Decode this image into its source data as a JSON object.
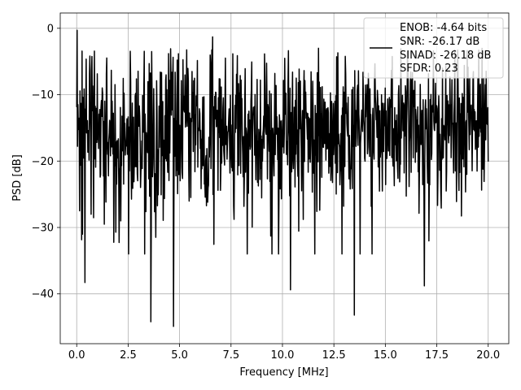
{
  "chart_data": {
    "type": "line",
    "xlabel": "Frequency [MHz]",
    "ylabel": "PSD [dB]",
    "xlim": [
      -0.8,
      21.0
    ],
    "ylim": [
      -47.5,
      2.3
    ],
    "xticks": [
      0.0,
      2.5,
      5.0,
      7.5,
      10.0,
      12.5,
      15.0,
      17.5,
      20.0
    ],
    "xtick_labels": [
      "0.0",
      "2.5",
      "5.0",
      "7.5",
      "10.0",
      "12.5",
      "15.0",
      "17.5",
      "20.0"
    ],
    "yticks": [
      0,
      -10,
      -20,
      -30,
      -40
    ],
    "ytick_labels": [
      "0",
      "−10",
      "−20",
      "−30",
      "−40"
    ],
    "grid": true,
    "legend_position": "top-right",
    "legend_lines": [
      "ENOB: -4.64 bits",
      "SNR: -26.17 dB",
      "SINAD: -26.18 dB",
      "SFDR: 0.23"
    ],
    "line_color": "#000000",
    "series": [
      {
        "label": "ENOB: -4.64 bits\nSNR: -26.17 dB\nSINAD: -26.18 dB\nSFDR: 0.23",
        "x_range": [
          0.0,
          20.0
        ],
        "point_count": 1000,
        "mean_level_db": -15,
        "noise_band_db": [
          -28,
          -3
        ],
        "notable_points": [
          {
            "x": 0.03,
            "y": -0.3
          },
          {
            "x": 0.1,
            "y": -15
          },
          {
            "x": 0.15,
            "y": -27.5
          },
          {
            "x": 0.4,
            "y": -38.3
          },
          {
            "x": 3.6,
            "y": -44.2
          },
          {
            "x": 4.7,
            "y": -44.9
          },
          {
            "x": 6.6,
            "y": -1.3
          },
          {
            "x": 10.4,
            "y": -39.4
          },
          {
            "x": 13.5,
            "y": -43.2
          },
          {
            "x": 16.9,
            "y": -38.8
          }
        ]
      }
    ]
  }
}
